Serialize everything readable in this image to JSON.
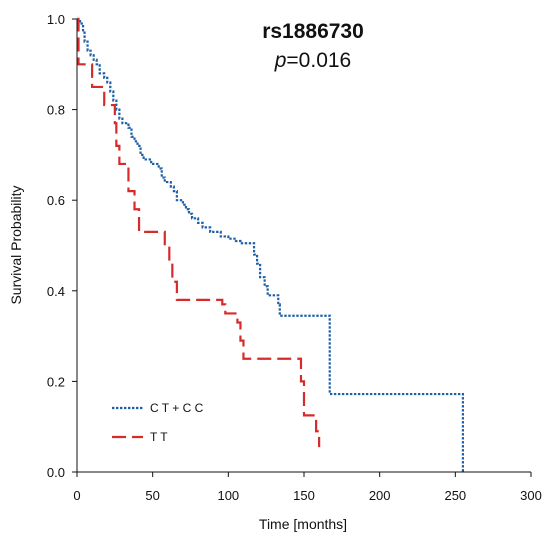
{
  "chart_data": {
    "type": "line",
    "title": "rs1886730",
    "p_label": "p",
    "p_value_text": "=0.016",
    "xlabel": "Time [months]",
    "ylabel": "Survival Probability",
    "xlim": [
      0,
      300
    ],
    "ylim": [
      0,
      1
    ],
    "x_ticks": [
      0,
      50,
      100,
      150,
      200,
      250,
      300
    ],
    "x_tick_labels": [
      "0",
      "50",
      "100",
      "150",
      "200",
      "250",
      "300"
    ],
    "y_ticks": [
      0,
      0.2,
      0.4,
      0.6,
      0.8,
      1.0
    ],
    "y_tick_labels": [
      "0.0",
      "0.2",
      "0.4",
      "0.6",
      "0.8",
      "1.0"
    ],
    "grid": false,
    "legend_position": "bottom-left",
    "series": [
      {
        "name": "C T + C C",
        "color": "#1f5fa8",
        "style": "dotted",
        "points": [
          [
            0,
            1.0
          ],
          [
            2,
            0.99
          ],
          [
            4,
            0.97
          ],
          [
            5,
            0.95
          ],
          [
            7,
            0.93
          ],
          [
            9,
            0.92
          ],
          [
            11,
            0.91
          ],
          [
            13,
            0.9
          ],
          [
            15,
            0.88
          ],
          [
            18,
            0.87
          ],
          [
            20,
            0.86
          ],
          [
            22,
            0.84
          ],
          [
            24,
            0.82
          ],
          [
            26,
            0.8
          ],
          [
            28,
            0.78
          ],
          [
            30,
            0.77
          ],
          [
            34,
            0.76
          ],
          [
            36,
            0.74
          ],
          [
            38,
            0.73
          ],
          [
            40,
            0.72
          ],
          [
            42,
            0.7
          ],
          [
            44,
            0.69
          ],
          [
            49,
            0.68
          ],
          [
            54,
            0.67
          ],
          [
            56,
            0.65
          ],
          [
            58,
            0.64
          ],
          [
            62,
            0.63
          ],
          [
            64,
            0.62
          ],
          [
            66,
            0.6
          ],
          [
            70,
            0.59
          ],
          [
            72,
            0.58
          ],
          [
            74,
            0.57
          ],
          [
            76,
            0.56
          ],
          [
            80,
            0.55
          ],
          [
            83,
            0.54
          ],
          [
            88,
            0.53
          ],
          [
            95,
            0.52
          ],
          [
            100,
            0.515
          ],
          [
            102,
            0.515
          ],
          [
            105,
            0.51
          ],
          [
            108,
            0.505
          ],
          [
            117,
            0.48
          ],
          [
            119,
            0.46
          ],
          [
            121,
            0.43
          ],
          [
            124,
            0.41
          ],
          [
            126,
            0.39
          ],
          [
            133,
            0.37
          ],
          [
            134,
            0.345
          ],
          [
            167,
            0.172
          ],
          [
            255,
            0.0
          ]
        ]
      },
      {
        "name": "T T",
        "color": "#d62b2b",
        "style": "dashed",
        "points": [
          [
            0,
            1.0
          ],
          [
            1,
            0.9
          ],
          [
            10,
            0.85
          ],
          [
            18,
            0.81
          ],
          [
            25,
            0.77
          ],
          [
            26,
            0.72
          ],
          [
            28,
            0.68
          ],
          [
            34,
            0.62
          ],
          [
            38,
            0.58
          ],
          [
            41,
            0.53
          ],
          [
            58,
            0.5
          ],
          [
            61,
            0.46
          ],
          [
            63,
            0.42
          ],
          [
            66,
            0.38
          ],
          [
            96,
            0.37
          ],
          [
            98,
            0.35
          ],
          [
            106,
            0.33
          ],
          [
            108,
            0.29
          ],
          [
            110,
            0.25
          ],
          [
            148,
            0.2
          ],
          [
            150,
            0.125
          ],
          [
            158,
            0.09
          ],
          [
            160,
            0.055
          ]
        ]
      }
    ]
  }
}
